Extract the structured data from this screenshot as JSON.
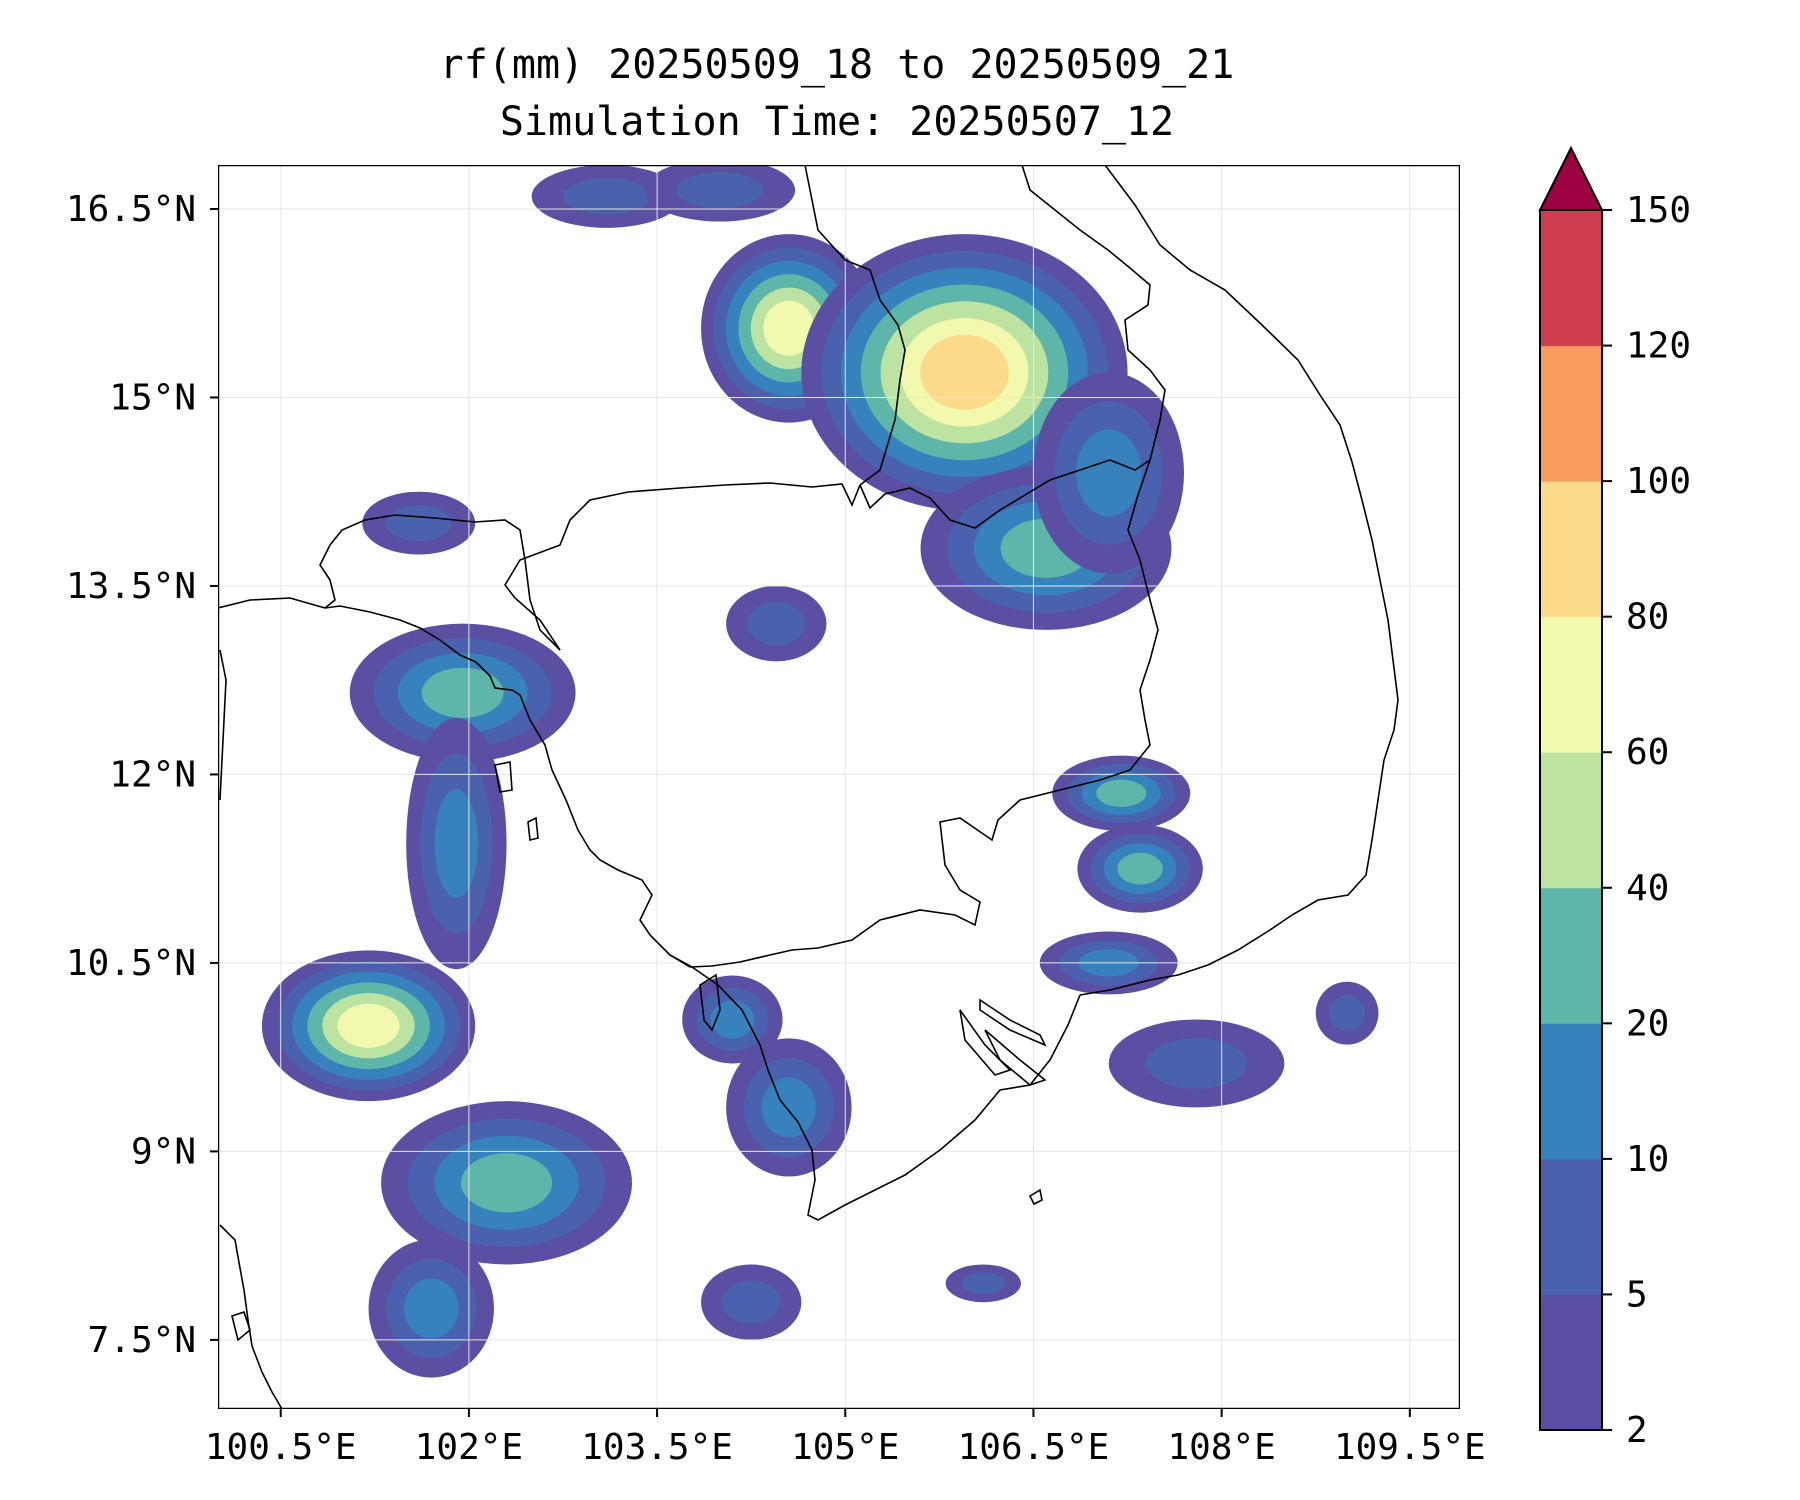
{
  "title": {
    "line1": "rf(mm) 20250509_18 to 20250509_21",
    "line2": "Simulation Time: 20250507_12"
  },
  "map": {
    "lon_range": [
      100.0,
      109.9
    ],
    "lat_range": [
      6.95,
      16.85
    ],
    "lon_ticks": [
      100.5,
      102,
      103.5,
      105,
      106.5,
      108,
      109.5
    ],
    "lat_ticks": [
      7.5,
      9,
      10.5,
      12,
      13.5,
      15,
      16.5
    ],
    "lon_labels": [
      "100.5°E",
      "102°E",
      "103.5°E",
      "105°E",
      "106.5°E",
      "108°E",
      "109.5°E"
    ],
    "lat_labels": [
      "7.5°N",
      "9°N",
      "10.5°N",
      "12°N",
      "13.5°N",
      "15°N",
      "16.5°N"
    ],
    "grid": true
  },
  "colorbar": {
    "levels": [
      2,
      5,
      10,
      20,
      40,
      60,
      80,
      100,
      120,
      150
    ],
    "labels": [
      "2",
      "5",
      "10",
      "20",
      "40",
      "60",
      "80",
      "100",
      "120",
      "150"
    ],
    "colors": [
      "#5a4fa2",
      "#4a62ad",
      "#3781bc",
      "#5db6a9",
      "#bce3a1",
      "#f2f8ad",
      "#fbdb8a",
      "#f89b5c",
      "#d13d50"
    ],
    "extend_color": "#9d0142",
    "extend": "max"
  },
  "rain_cells": [
    {
      "lon": 104.55,
      "lat": 15.55,
      "rx": 0.7,
      "ry": 0.75,
      "peak": 60,
      "name": "rain-cell-ne-laos-west"
    },
    {
      "lon": 105.95,
      "lat": 15.2,
      "rx": 1.3,
      "ry": 1.1,
      "peak": 90,
      "name": "rain-cell-ne-laos-main"
    },
    {
      "lon": 106.6,
      "lat": 13.8,
      "rx": 1.0,
      "ry": 0.65,
      "peak": 35,
      "name": "rain-cell-ne-cambodia"
    },
    {
      "lon": 107.1,
      "lat": 14.4,
      "rx": 0.6,
      "ry": 0.8,
      "peak": 15,
      "name": "rain-cell-central-highlands"
    },
    {
      "lon": 104.45,
      "lat": 13.2,
      "rx": 0.4,
      "ry": 0.3,
      "peak": 8,
      "name": "rain-cell-cambodia-small"
    },
    {
      "lon": 101.95,
      "lat": 12.65,
      "rx": 0.9,
      "ry": 0.55,
      "peak": 30,
      "name": "rain-cell-trat"
    },
    {
      "lon": 101.9,
      "lat": 11.45,
      "rx": 0.4,
      "ry": 1.0,
      "peak": 12,
      "name": "rain-cell-gulf-north"
    },
    {
      "lon": 101.2,
      "lat": 10.0,
      "rx": 0.85,
      "ry": 0.6,
      "peak": 70,
      "name": "rain-cell-gulf-west"
    },
    {
      "lon": 102.3,
      "lat": 8.75,
      "rx": 1.0,
      "ry": 0.65,
      "peak": 35,
      "name": "rain-cell-gulf-south"
    },
    {
      "lon": 101.7,
      "lat": 7.75,
      "rx": 0.5,
      "ry": 0.55,
      "peak": 10,
      "name": "rain-cell-gulf-far-south"
    },
    {
      "lon": 101.6,
      "lat": 14.0,
      "rx": 0.45,
      "ry": 0.25,
      "peak": 6,
      "name": "rain-cell-thai-east"
    },
    {
      "lon": 104.1,
      "lat": 10.05,
      "rx": 0.4,
      "ry": 0.35,
      "peak": 12,
      "name": "rain-cell-phu-quoc"
    },
    {
      "lon": 104.55,
      "lat": 9.35,
      "rx": 0.5,
      "ry": 0.55,
      "peak": 15,
      "name": "rain-cell-ca-mau-west"
    },
    {
      "lon": 104.25,
      "lat": 7.8,
      "rx": 0.4,
      "ry": 0.3,
      "peak": 8,
      "name": "rain-cell-ca-mau-south"
    },
    {
      "lon": 107.2,
      "lat": 11.85,
      "rx": 0.55,
      "ry": 0.3,
      "peak": 25,
      "name": "rain-cell-dong-nai"
    },
    {
      "lon": 107.35,
      "lat": 11.25,
      "rx": 0.5,
      "ry": 0.35,
      "peak": 20,
      "name": "rain-cell-lam-dong"
    },
    {
      "lon": 107.1,
      "lat": 10.5,
      "rx": 0.55,
      "ry": 0.25,
      "peak": 12,
      "name": "rain-cell-vung-tau"
    },
    {
      "lon": 107.8,
      "lat": 9.7,
      "rx": 0.7,
      "ry": 0.35,
      "peak": 8,
      "name": "rain-cell-offshore-south"
    },
    {
      "lon": 109.0,
      "lat": 10.1,
      "rx": 0.25,
      "ry": 0.25,
      "peak": 6,
      "name": "rain-cell-offshore-east"
    },
    {
      "lon": 106.1,
      "lat": 7.95,
      "rx": 0.3,
      "ry": 0.15,
      "peak": 6,
      "name": "rain-cell-offshore-sw"
    },
    {
      "lon": 103.1,
      "lat": 16.6,
      "rx": 0.6,
      "ry": 0.25,
      "peak": 8,
      "name": "rain-cell-north-1"
    },
    {
      "lon": 104.0,
      "lat": 16.65,
      "rx": 0.6,
      "ry": 0.25,
      "peak": 8,
      "name": "rain-cell-north-2"
    }
  ]
}
